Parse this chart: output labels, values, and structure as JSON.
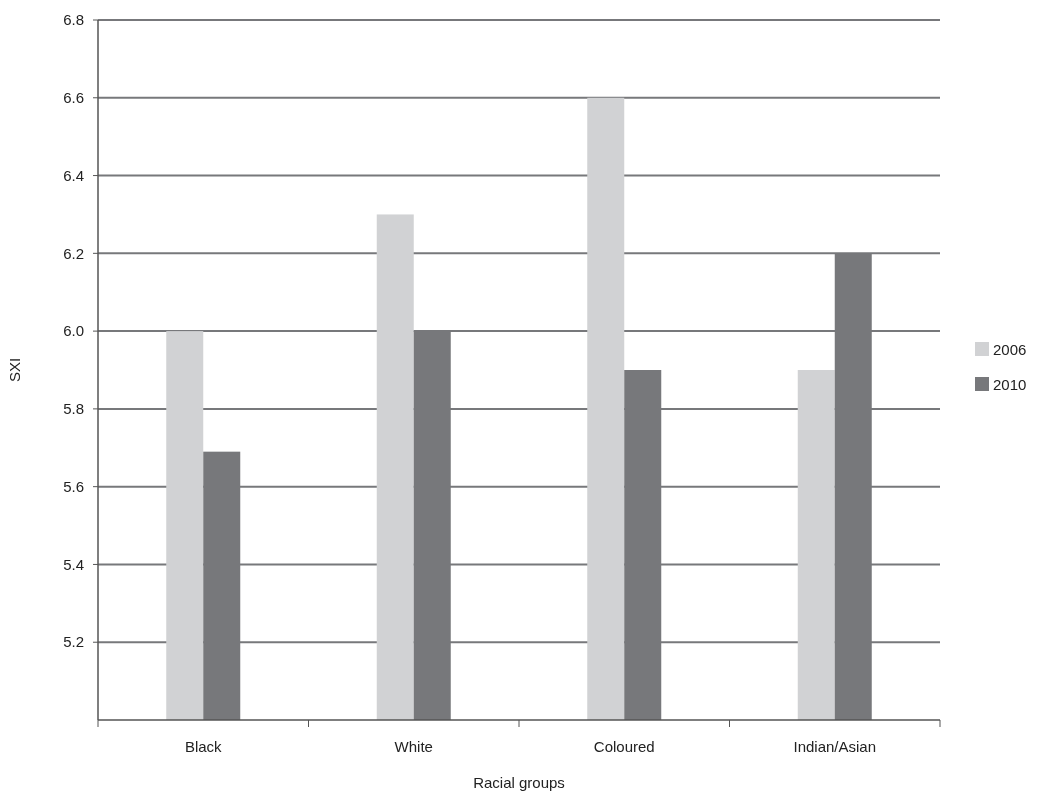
{
  "chart_data": {
    "type": "bar",
    "xlabel": "Racial groups",
    "ylabel": "SXI",
    "categories": [
      "Black",
      "White",
      "Coloured",
      "Indian/Asian"
    ],
    "series": [
      {
        "name": "2006",
        "color": "#d1d2d4",
        "values": [
          6.0,
          6.3,
          6.6,
          5.9
        ]
      },
      {
        "name": "2010",
        "color": "#77787b",
        "values": [
          5.69,
          6.0,
          5.9,
          6.2
        ]
      }
    ],
    "ylim": [
      5.0,
      6.8
    ],
    "yticks": [
      {
        "value": 5.2,
        "label": "5.2"
      },
      {
        "value": 5.4,
        "label": "5.4"
      },
      {
        "value": 5.6,
        "label": "5.6"
      },
      {
        "value": 5.8,
        "label": "5.8"
      },
      {
        "value": 6.0,
        "label": "6.0"
      },
      {
        "value": 6.2,
        "label": "6.2"
      },
      {
        "value": 6.4,
        "label": "6.4"
      },
      {
        "value": 6.6,
        "label": "6.6"
      },
      {
        "value": 6.8,
        "label": "6.8"
      }
    ],
    "grid": "y",
    "legend": "right"
  }
}
